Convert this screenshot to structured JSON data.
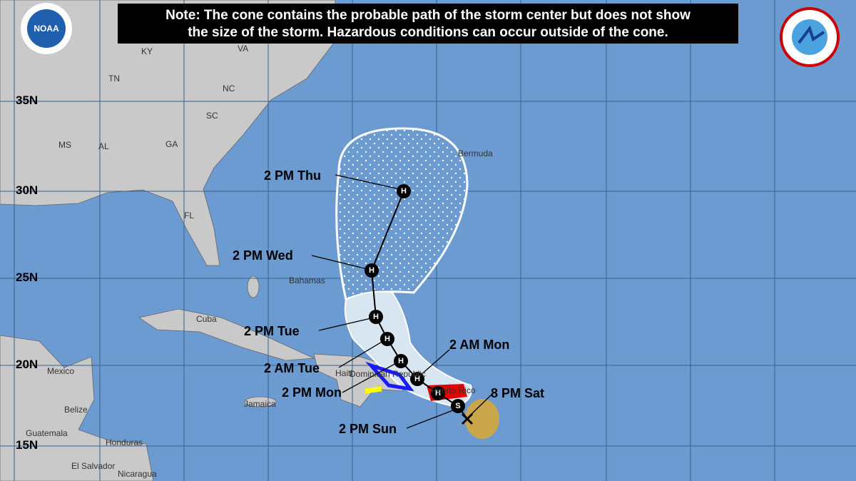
{
  "note": {
    "lines": [
      "Note: The cone contains the probable path of the storm center but does not show",
      "the size of the storm. Hazardous conditions can occur outside of the cone."
    ]
  },
  "latitude_labels": [
    "35N",
    "30N",
    "25N",
    "20N",
    "15N"
  ],
  "places": [
    "KY",
    "VA",
    "TN",
    "NC",
    "SC",
    "MS",
    "AL",
    "GA",
    "FL",
    "Bermuda",
    "Bahamas",
    "Cuba",
    "Mexico",
    "Belize",
    "Jamaica",
    "Guatemala",
    "Honduras",
    "El Salvador",
    "Nicaragua",
    "Haiti",
    "Dominican Republic",
    "Puerto Rico"
  ],
  "time_labels": [
    "2 PM Thu",
    "2 PM Wed",
    "2 PM Tue",
    "2 AM Tue",
    "2 PM Mon",
    "2 AM Mon",
    "8 PM Sat",
    "2 PM Sun"
  ],
  "markers": [
    "H",
    "H",
    "H",
    "H",
    "H",
    "H",
    "H",
    "S"
  ],
  "logos": {
    "noaa": "NOAA"
  }
}
